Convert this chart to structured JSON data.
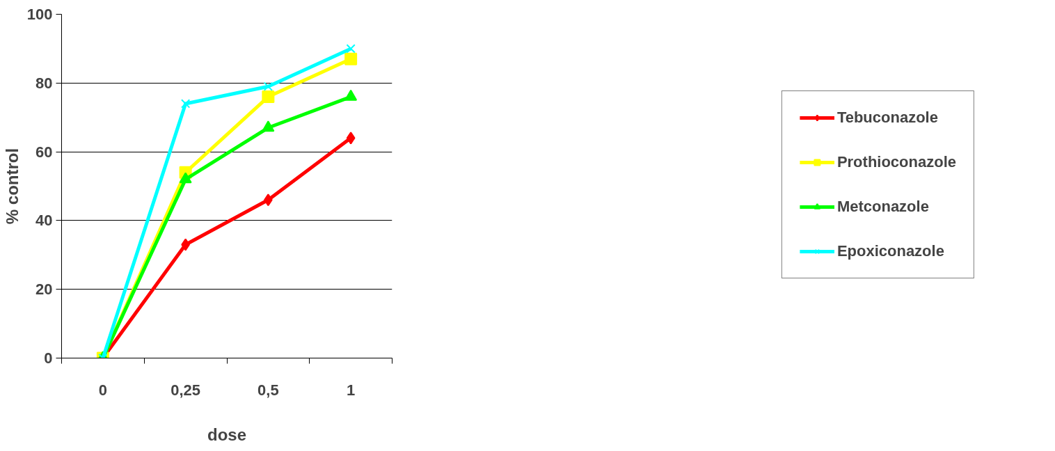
{
  "chart_data": {
    "type": "line",
    "xlabel": "dose",
    "ylabel": "% control",
    "categories": [
      "0",
      "0,25",
      "0,5",
      "1"
    ],
    "series": [
      {
        "name": "Tebuconazole",
        "color": "#ff0000",
        "marker": "diamond",
        "values": [
          0,
          33,
          46,
          64
        ]
      },
      {
        "name": "Prothioconazole",
        "color": "#ffff00",
        "marker": "square",
        "values": [
          0,
          54,
          76,
          87
        ]
      },
      {
        "name": "Metconazole",
        "color": "#00ff00",
        "marker": "triangle",
        "values": [
          0,
          52,
          67,
          76
        ]
      },
      {
        "name": "Epoxiconazole",
        "color": "#00ffff",
        "marker": "cross",
        "values": [
          0,
          74,
          79,
          90
        ]
      }
    ],
    "ylim": [
      0,
      100
    ],
    "yticks": [
      0,
      20,
      40,
      60,
      80,
      100
    ],
    "grid": "y",
    "legend": "right",
    "line_style": "solid"
  }
}
